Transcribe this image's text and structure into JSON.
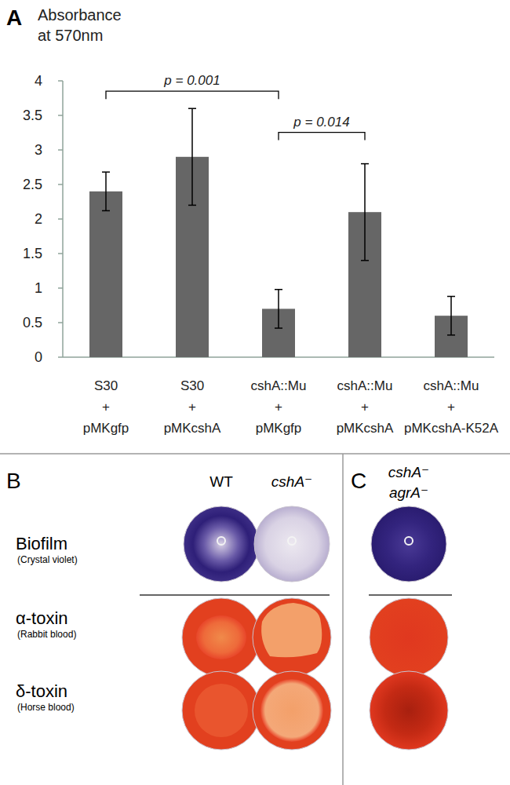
{
  "chart_data": {
    "type": "bar",
    "panel_label": "A",
    "ylabel": "Absorbance at 570nm",
    "categories": [
      "S30 + pMKgfp",
      "S30 + pMKcshA",
      "cshA::Mu + pMKgfp",
      "cshA::Mu + pMKcshA",
      "cshA::Mu + pMKcshA-K52A"
    ],
    "values": [
      2.4,
      2.9,
      0.7,
      2.1,
      0.6
    ],
    "errors": [
      0.28,
      0.7,
      0.28,
      0.7,
      0.28
    ],
    "color": "#666666",
    "ylim": [
      0,
      4
    ],
    "yticks": [
      0,
      0.5,
      1,
      1.5,
      2,
      2.5,
      3,
      3.5,
      4
    ],
    "grid": false,
    "annotations": [
      {
        "text": "p = 0.001",
        "from": 0,
        "to": 2
      },
      {
        "text": "p = 0.014",
        "from": 2,
        "to": 3
      }
    ]
  },
  "figure": {
    "panel_b": {
      "label": "B",
      "columns": [
        "WT",
        "cshA⁻"
      ]
    },
    "panel_c": {
      "label": "C",
      "columns": [
        "cshA⁻ agrA⁻"
      ]
    },
    "rows": [
      {
        "label": "Biofilm",
        "sublabel": "(Crystal violet)"
      },
      {
        "label": "α-toxin",
        "sublabel": "(Rabbit blood)"
      },
      {
        "label": "δ-toxin",
        "sublabel": "(Horse blood)"
      }
    ]
  }
}
